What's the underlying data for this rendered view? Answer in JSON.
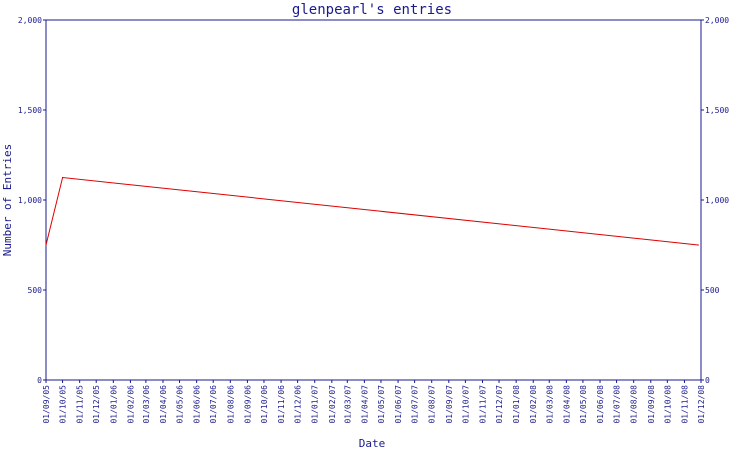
{
  "chart_data": {
    "type": "line",
    "title": "glenpearl's entries",
    "xlabel": "Date",
    "ylabel": "Number of Entries",
    "ylim": [
      0,
      2000
    ],
    "yticks": [
      "0",
      "500",
      "1,000",
      "1,500",
      "2,000"
    ],
    "x_ticks": [
      "01/09/05",
      "01/10/05",
      "01/11/05",
      "01/12/05",
      "01/01/06",
      "01/02/06",
      "01/03/06",
      "01/04/06",
      "01/05/06",
      "01/06/06",
      "01/07/06",
      "01/08/06",
      "01/09/06",
      "01/10/06",
      "01/11/06",
      "01/12/06",
      "01/01/07",
      "01/02/07",
      "01/03/07",
      "01/04/07",
      "01/05/07",
      "01/06/07",
      "01/07/07",
      "01/08/07",
      "01/09/07",
      "01/10/07",
      "01/11/07",
      "01/12/07",
      "01/01/08",
      "01/02/08",
      "01/03/08",
      "01/04/08",
      "01/05/08",
      "01/06/08",
      "01/07/08",
      "01/08/08",
      "01/09/08",
      "01/10/08",
      "01/11/08",
      "01/12/08"
    ],
    "x_range": [
      "2005-09-01",
      "2008-12-01"
    ],
    "grid": false,
    "series": [
      {
        "color": "#dd0000",
        "points": [
          {
            "x": "2005-09-01",
            "y": 750
          },
          {
            "x": "2005-10-01",
            "y": 1125
          },
          {
            "x": "2008-11-26",
            "y": 750
          }
        ]
      }
    ],
    "colors": {
      "axis": "#1a1a8c",
      "text": "#1a1a8c",
      "line": "#dd0000"
    }
  }
}
